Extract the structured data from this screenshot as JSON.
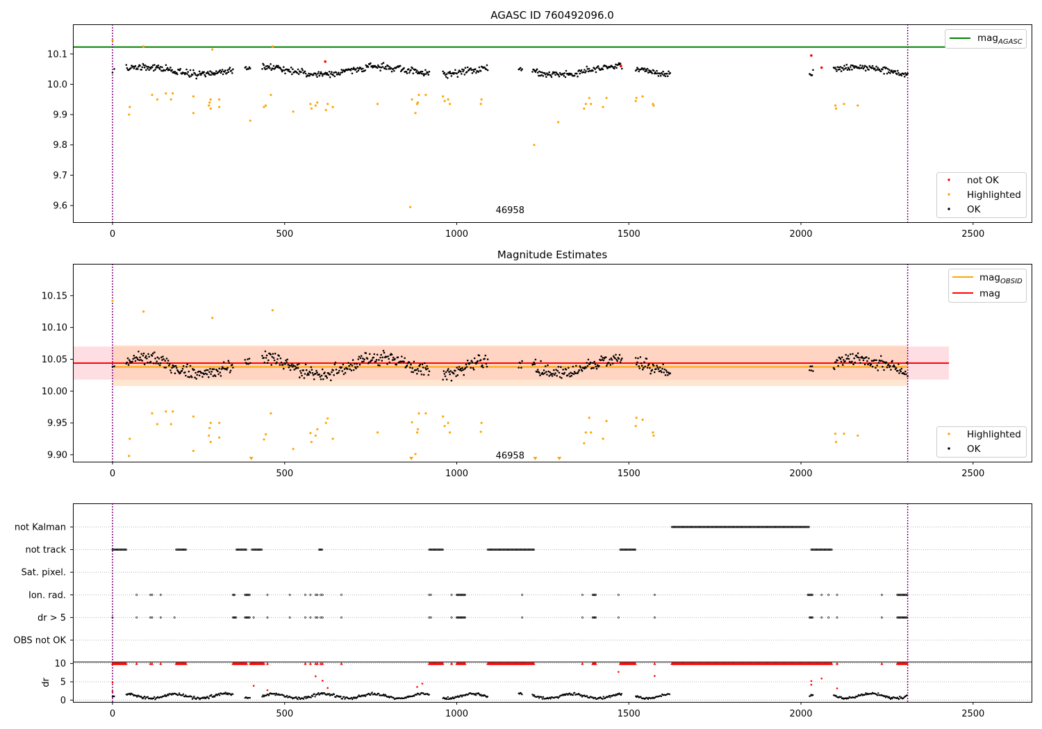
{
  "chart_data": [
    {
      "type": "scatter",
      "title": "AGASC ID 760492096.0",
      "xlim": [
        -115,
        2670
      ],
      "ylim": [
        9.545,
        10.198
      ],
      "xticks": [
        0,
        500,
        1000,
        1500,
        2000,
        2500
      ],
      "yticks": [
        9.6,
        9.7,
        9.8,
        9.9,
        10.0,
        10.1
      ],
      "ytick_labels": [
        "9.6",
        "9.7",
        "9.8",
        "9.9",
        "10.0",
        "10.1"
      ],
      "hlines": [
        {
          "name": "mag_AGASC",
          "y": 10.123,
          "x_end": 2430,
          "color": "#008000"
        }
      ],
      "vlines": [
        {
          "x": 0,
          "color": "#800080"
        },
        {
          "x": 2310,
          "color": "#800080"
        }
      ],
      "annotation": {
        "text": "46958",
        "x": 1155,
        "y": 9.575
      },
      "legend": {
        "position": "top-right",
        "entries": [
          {
            "label": "mag",
            "sub": "AGASC",
            "color": "#008000",
            "kind": "line"
          }
        ]
      },
      "legend2": {
        "position": "lower-right",
        "entries": [
          {
            "label": "not OK",
            "color": "#ff0000",
            "kind": "dot"
          },
          {
            "label": "Highlighted",
            "color": "#ffa500",
            "kind": "dot"
          },
          {
            "label": "OK",
            "color": "#000000",
            "kind": "dot"
          }
        ]
      },
      "segments": [
        [
          0,
          5
        ],
        [
          40,
          350
        ],
        [
          385,
          400
        ],
        [
          435,
          920
        ],
        [
          960,
          1090
        ],
        [
          1180,
          1190
        ],
        [
          1220,
          1480
        ],
        [
          1520,
          1620
        ],
        [
          2025,
          2035
        ],
        [
          2095,
          2310
        ]
      ],
      "ok_points": {
        "base": 10.045,
        "spread": 0.03,
        "color": "#000000"
      },
      "highlighted": {
        "color": "#ffa500",
        "points": [
          [
            0,
            10.145
          ],
          [
            48,
            9.9
          ],
          [
            50,
            9.925
          ],
          [
            90,
            10.125
          ],
          [
            115,
            9.965
          ],
          [
            130,
            9.95
          ],
          [
            155,
            9.97
          ],
          [
            170,
            9.95
          ],
          [
            175,
            9.97
          ],
          [
            235,
            9.96
          ],
          [
            235,
            9.905
          ],
          [
            280,
            9.93
          ],
          [
            282,
            9.94
          ],
          [
            285,
            9.92
          ],
          [
            285,
            9.95
          ],
          [
            290,
            10.115
          ],
          [
            310,
            9.925
          ],
          [
            310,
            9.95
          ],
          [
            400,
            9.88
          ],
          [
            440,
            9.925
          ],
          [
            445,
            9.93
          ],
          [
            460,
            9.965
          ],
          [
            465,
            10.125
          ],
          [
            525,
            9.91
          ],
          [
            575,
            9.935
          ],
          [
            578,
            9.92
          ],
          [
            590,
            9.93
          ],
          [
            595,
            9.94
          ],
          [
            620,
            9.915
          ],
          [
            625,
            9.935
          ],
          [
            640,
            9.925
          ],
          [
            770,
            9.935
          ],
          [
            865,
            9.595
          ],
          [
            870,
            9.95
          ],
          [
            880,
            9.905
          ],
          [
            885,
            9.935
          ],
          [
            887,
            9.94
          ],
          [
            890,
            9.965
          ],
          [
            910,
            9.965
          ],
          [
            960,
            9.96
          ],
          [
            965,
            9.945
          ],
          [
            975,
            9.95
          ],
          [
            980,
            9.935
          ],
          [
            1070,
            9.935
          ],
          [
            1072,
            9.95
          ],
          [
            1225,
            9.8
          ],
          [
            1295,
            9.875
          ],
          [
            1370,
            9.92
          ],
          [
            1375,
            9.935
          ],
          [
            1385,
            9.955
          ],
          [
            1390,
            9.935
          ],
          [
            1425,
            9.925
          ],
          [
            1435,
            9.955
          ],
          [
            1520,
            9.945
          ],
          [
            1522,
            9.955
          ],
          [
            1540,
            9.96
          ],
          [
            1570,
            9.935
          ],
          [
            1572,
            9.93
          ],
          [
            2100,
            9.93
          ],
          [
            2102,
            9.92
          ],
          [
            2125,
            9.935
          ],
          [
            2165,
            9.93
          ]
        ]
      },
      "not_ok": {
        "color": "#ff0000",
        "points": [
          [
            618,
            10.075
          ],
          [
            1477,
            10.06
          ],
          [
            2030,
            10.095
          ],
          [
            2060,
            10.055
          ]
        ]
      }
    },
    {
      "type": "scatter",
      "title": "Magnitude Estimates",
      "xlim": [
        -115,
        2670
      ],
      "ylim": [
        9.889,
        10.2
      ],
      "xticks": [
        0,
        500,
        1000,
        1500,
        2000,
        2500
      ],
      "yticks": [
        9.9,
        9.95,
        10.0,
        10.05,
        10.1,
        10.15
      ],
      "ytick_labels": [
        "9.90",
        "9.95",
        "10.00",
        "10.05",
        "10.10",
        "10.15"
      ],
      "bands": [
        {
          "y0": 10.018,
          "y1": 10.07,
          "x0": -115,
          "x1": 2430,
          "color": "#ffb6c1",
          "opacity": 0.45
        },
        {
          "y0": 10.008,
          "y1": 10.072,
          "x0": 0,
          "x1": 2310,
          "color": "#ffc89a",
          "opacity": 0.45
        }
      ],
      "hlines": [
        {
          "name": "mag_OBSID",
          "y": 10.038,
          "x_start": 0,
          "x_end": 2310,
          "color": "#ffa500"
        },
        {
          "name": "mag",
          "y": 10.044,
          "x_start": -115,
          "x_end": 2430,
          "color": "#ff0000"
        }
      ],
      "vlines": [
        {
          "x": 0,
          "color": "#800080"
        },
        {
          "x": 2310,
          "color": "#800080"
        }
      ],
      "annotation": {
        "text": "46958",
        "x": 1155,
        "y": 9.894
      },
      "legend": {
        "position": "top-right",
        "entries": [
          {
            "label": "mag",
            "sub": "OBSID",
            "color": "#ffa500",
            "kind": "line"
          },
          {
            "label": "mag",
            "sub": "",
            "color": "#ff0000",
            "kind": "line"
          }
        ]
      },
      "legend2": {
        "position": "lower-right",
        "entries": [
          {
            "label": "Highlighted",
            "color": "#ffa500",
            "kind": "dot"
          },
          {
            "label": "OK",
            "color": "#000000",
            "kind": "dot"
          }
        ]
      },
      "segments": [
        [
          0,
          5
        ],
        [
          40,
          350
        ],
        [
          385,
          400
        ],
        [
          435,
          920
        ],
        [
          960,
          1090
        ],
        [
          1180,
          1190
        ],
        [
          1220,
          1480
        ],
        [
          1520,
          1620
        ],
        [
          2025,
          2035
        ],
        [
          2095,
          2310
        ]
      ],
      "ok_points": {
        "base": 10.04,
        "spread": 0.03,
        "color": "#000000"
      },
      "highlighted": {
        "color": "#ffa500",
        "points": [
          [
            0,
            10.142
          ],
          [
            48,
            9.898
          ],
          [
            50,
            9.925
          ],
          [
            90,
            10.125
          ],
          [
            115,
            9.965
          ],
          [
            130,
            9.948
          ],
          [
            155,
            9.968
          ],
          [
            170,
            9.948
          ],
          [
            175,
            9.968
          ],
          [
            235,
            9.96
          ],
          [
            235,
            9.906
          ],
          [
            280,
            9.93
          ],
          [
            282,
            9.942
          ],
          [
            285,
            9.92
          ],
          [
            285,
            9.95
          ],
          [
            290,
            10.115
          ],
          [
            310,
            9.927
          ],
          [
            310,
            9.95
          ],
          [
            440,
            9.924
          ],
          [
            445,
            9.932
          ],
          [
            460,
            9.965
          ],
          [
            465,
            10.127
          ],
          [
            525,
            9.909
          ],
          [
            575,
            9.934
          ],
          [
            578,
            9.92
          ],
          [
            590,
            9.93
          ],
          [
            595,
            9.94
          ],
          [
            620,
            9.95
          ],
          [
            625,
            9.957
          ],
          [
            640,
            9.925
          ],
          [
            770,
            9.935
          ],
          [
            870,
            9.951
          ],
          [
            880,
            9.901
          ],
          [
            885,
            9.935
          ],
          [
            887,
            9.94
          ],
          [
            890,
            9.965
          ],
          [
            910,
            9.965
          ],
          [
            960,
            9.96
          ],
          [
            965,
            9.945
          ],
          [
            975,
            9.95
          ],
          [
            980,
            9.935
          ],
          [
            1070,
            9.936
          ],
          [
            1072,
            9.95
          ],
          [
            1370,
            9.918
          ],
          [
            1375,
            9.935
          ],
          [
            1385,
            9.958
          ],
          [
            1390,
            9.935
          ],
          [
            1425,
            9.925
          ],
          [
            1435,
            9.953
          ],
          [
            1520,
            9.945
          ],
          [
            1522,
            9.958
          ],
          [
            1540,
            9.955
          ],
          [
            1570,
            9.935
          ],
          [
            1572,
            9.93
          ],
          [
            2100,
            9.933
          ],
          [
            2102,
            9.92
          ],
          [
            2125,
            9.933
          ],
          [
            2165,
            9.93
          ]
        ]
      },
      "offscale_markers": {
        "color": "#ffa500",
        "x": [
          403,
          868,
          1228,
          1298
        ]
      }
    },
    {
      "type": "scatter",
      "title": "",
      "xlim": [
        -115,
        2670
      ],
      "xticks": [
        0,
        500,
        1000,
        1500,
        2000,
        2500
      ],
      "categories": [
        "not Kalman",
        "not track",
        "Sat. pixel.",
        "Ion. rad.",
        "dr > 5",
        "OBS not OK"
      ],
      "flag_rows": [
        {
          "name": "not Kalman",
          "ranges": [
            [
              1625,
              2025
            ]
          ],
          "points": []
        },
        {
          "name": "not track",
          "ranges": [
            [
              0,
              40
            ],
            [
              185,
              215
            ],
            [
              360,
              390
            ],
            [
              405,
              435
            ],
            [
              600,
              610
            ],
            [
              920,
              960
            ],
            [
              1090,
              1225
            ],
            [
              1475,
              1520
            ],
            [
              2030,
              2090
            ]
          ],
          "points": []
        },
        {
          "name": "Sat. pixel.",
          "ranges": [],
          "points": []
        },
        {
          "name": "Ion. rad.",
          "ranges": [
            [
              350,
              355
            ],
            [
              385,
              400
            ],
            [
              1000,
              1025
            ],
            [
              1395,
              1405
            ],
            [
              2020,
              2035
            ],
            [
              2280,
              2310
            ]
          ],
          "points": [
            70,
            110,
            115,
            140,
            450,
            515,
            560,
            575,
            590,
            595,
            605,
            610,
            665,
            920,
            925,
            985,
            1190,
            1365,
            1470,
            1575,
            2060,
            2080,
            2105,
            2235
          ]
        },
        {
          "name": "dr > 5",
          "ranges": [
            [
              350,
              360
            ],
            [
              385,
              400
            ],
            [
              1000,
              1025
            ],
            [
              1395,
              1405
            ],
            [
              2025,
              2035
            ],
            [
              2280,
              2310
            ]
          ],
          "points": [
            0,
            70,
            110,
            115,
            140,
            180,
            410,
            450,
            515,
            560,
            575,
            590,
            595,
            605,
            610,
            665,
            920,
            925,
            985,
            1190,
            1365,
            1470,
            1575,
            2060,
            2080,
            2105,
            2235
          ]
        },
        {
          "name": "OBS not OK",
          "ranges": [],
          "points": []
        }
      ],
      "dr": {
        "ylim": [
          -0.5,
          10.5
        ],
        "yticks": [
          0,
          5,
          10
        ],
        "ytick_labels": [
          "0",
          "5",
          "10"
        ],
        "ylabel": "dr",
        "segments": [
          [
            0,
            5
          ],
          [
            40,
            350
          ],
          [
            385,
            400
          ],
          [
            435,
            920
          ],
          [
            960,
            1090
          ],
          [
            1180,
            1190
          ],
          [
            1220,
            1480
          ],
          [
            1520,
            1620
          ],
          [
            2025,
            2035
          ],
          [
            2095,
            2310
          ]
        ],
        "clipped": {
          "color": "#ff0000",
          "ranges": [
            [
              0,
              40
            ],
            [
              185,
              215
            ],
            [
              350,
              390
            ],
            [
              400,
              440
            ],
            [
              920,
              960
            ],
            [
              1000,
              1025
            ],
            [
              1090,
              1225
            ],
            [
              1395,
              1405
            ],
            [
              1475,
              1520
            ],
            [
              1625,
              2090
            ],
            [
              2280,
              2310
            ]
          ],
          "points": [
            70,
            110,
            115,
            140,
            450,
            560,
            575,
            590,
            595,
            605,
            610,
            665,
            985,
            1190,
            1365,
            1575,
            2105,
            2235
          ]
        },
        "red_points": [
          [
            0,
            4.8
          ],
          [
            0,
            2.3
          ],
          [
            410,
            3.9
          ],
          [
            450,
            2.7
          ],
          [
            590,
            6.5
          ],
          [
            610,
            5.3
          ],
          [
            2030,
            5.2
          ],
          [
            2030,
            4.2
          ],
          [
            2060,
            5.9
          ],
          [
            1470,
            7.7
          ],
          [
            1575,
            6.6
          ],
          [
            900,
            4.5
          ],
          [
            885,
            3.6
          ],
          [
            625,
            3.3
          ],
          [
            2105,
            3.2
          ]
        ]
      }
    }
  ]
}
